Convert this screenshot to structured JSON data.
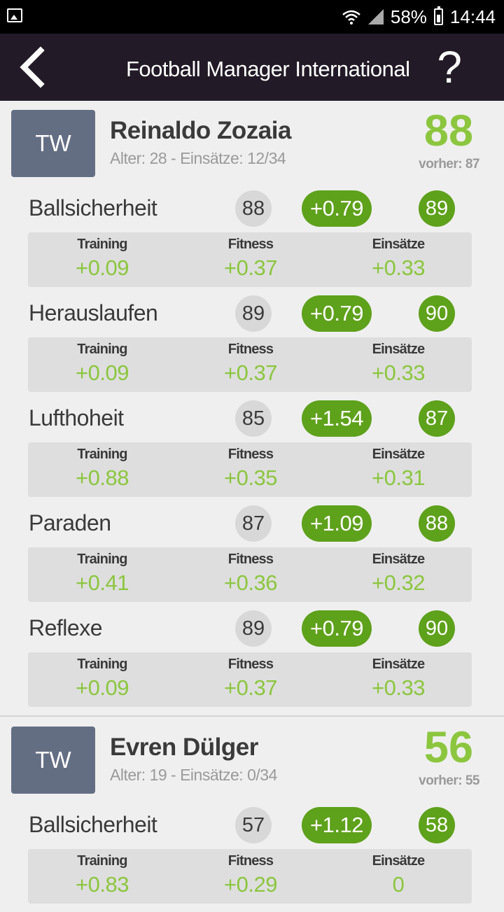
{
  "status_bar": {
    "battery": "58%",
    "time": "14:44"
  },
  "app_bar": {
    "title": "Football Manager International",
    "help_label": "?"
  },
  "players": [
    {
      "position": "TW",
      "name": "Reinaldo Zozaia",
      "info": "Alter: 28 - Einsätze: 12/34",
      "overall": "88",
      "previous": "vorher: 87",
      "skills": [
        {
          "name": "Ballsicherheit",
          "old": "88",
          "delta": "+0.79",
          "new": "89",
          "training": "+0.09",
          "fitness": "+0.37",
          "einsaetze": "+0.33"
        },
        {
          "name": "Herauslaufen",
          "old": "89",
          "delta": "+0.79",
          "new": "90",
          "training": "+0.09",
          "fitness": "+0.37",
          "einsaetze": "+0.33"
        },
        {
          "name": "Lufthoheit",
          "old": "85",
          "delta": "+1.54",
          "new": "87",
          "training": "+0.88",
          "fitness": "+0.35",
          "einsaetze": "+0.31"
        },
        {
          "name": "Paraden",
          "old": "87",
          "delta": "+1.09",
          "new": "88",
          "training": "+0.41",
          "fitness": "+0.36",
          "einsaetze": "+0.32"
        },
        {
          "name": "Reflexe",
          "old": "89",
          "delta": "+0.79",
          "new": "90",
          "training": "+0.09",
          "fitness": "+0.37",
          "einsaetze": "+0.33"
        }
      ]
    },
    {
      "position": "TW",
      "name": "Evren Dülger",
      "info": "Alter: 19 - Einsätze: 0/34",
      "overall": "56",
      "previous": "vorher: 55",
      "skills": [
        {
          "name": "Ballsicherheit",
          "old": "57",
          "delta": "+1.12",
          "new": "58",
          "training": "+0.83",
          "fitness": "+0.29",
          "einsaetze": "0"
        }
      ]
    }
  ],
  "labels": {
    "training": "Training",
    "fitness": "Fitness",
    "einsaetze": "Einsätze"
  },
  "colors": {
    "app_bar": "#221a26",
    "accent_green": "#5ea11b",
    "value_green": "#8cc63f",
    "avatar": "#646e83"
  },
  "icons": {
    "back": "chevron-left-icon",
    "help": "question-mark-icon",
    "gallery": "image-icon",
    "wifi": "wifi-icon",
    "signal": "signal-icon",
    "battery": "battery-icon"
  }
}
